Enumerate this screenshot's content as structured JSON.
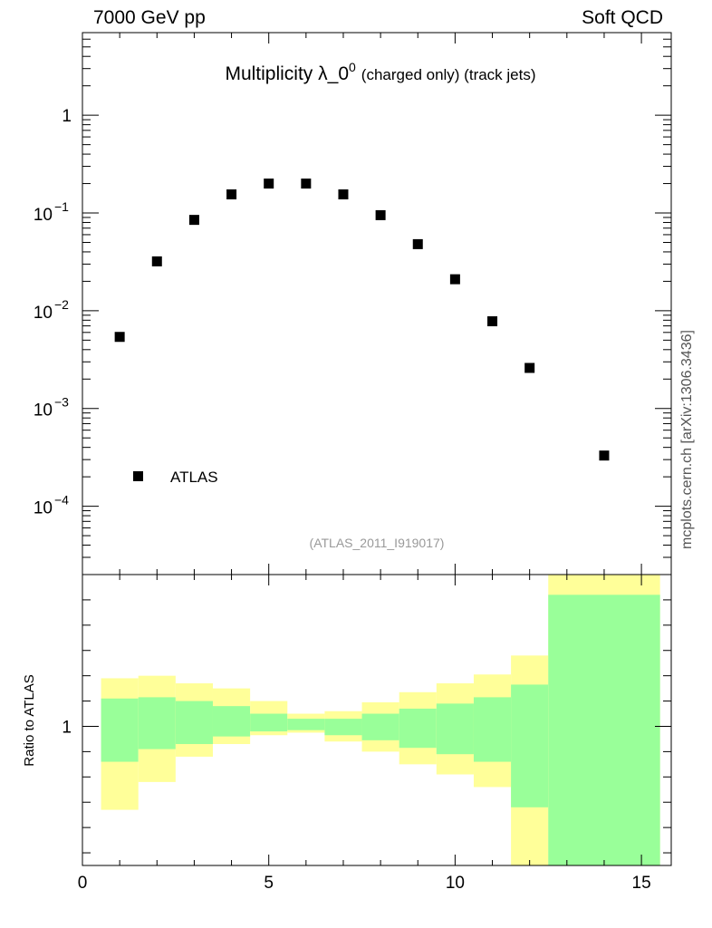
{
  "header": {
    "left": "7000 GeV pp",
    "right": "Soft QCD"
  },
  "side_label": "mcplots.cern.ch [arXiv:1306.3436]",
  "reference": "(ATLAS_2011_I919017)",
  "ratio_ylabel": "Ratio to ATLAS",
  "colors": {
    "band_inner": "#99ff99",
    "band_outer": "#ffff99",
    "marker": "#000000"
  },
  "chart_data": [
    {
      "type": "scatter",
      "title": {
        "main": "Multiplicity λ_0",
        "sup": "0",
        "sub": "(charged only) (track jets)"
      },
      "y_scale": "log",
      "xlim": [
        0,
        15.8
      ],
      "ylim": [
        2e-05,
        7
      ],
      "yticks": [
        {
          "value": 1,
          "label": "1"
        },
        {
          "value": 0.1,
          "base": "10",
          "exp": "−1"
        },
        {
          "value": 0.01,
          "base": "10",
          "exp": "−2"
        },
        {
          "value": 0.001,
          "base": "10",
          "exp": "−3"
        },
        {
          "value": 0.0001,
          "base": "10",
          "exp": "−4"
        }
      ],
      "legend": {
        "position": "bottom-left",
        "entries": [
          "ATLAS"
        ]
      },
      "series": [
        {
          "name": "ATLAS",
          "x": [
            1,
            2,
            3,
            4,
            5,
            6,
            7,
            8,
            9,
            10,
            11,
            12,
            14
          ],
          "y": [
            0.0054,
            0.032,
            0.085,
            0.155,
            0.2,
            0.2,
            0.155,
            0.095,
            0.048,
            0.021,
            0.0078,
            0.0026,
            0.00033
          ]
        }
      ]
    },
    {
      "type": "area",
      "ylabel": "Ratio to ATLAS",
      "xlim": [
        0,
        15.8
      ],
      "ylim": [
        0.45,
        1.6
      ],
      "xticks": [
        0,
        5,
        10,
        15
      ],
      "yticks": [
        {
          "value": 1,
          "label": "1"
        }
      ],
      "bins": [
        {
          "lo": 0.5,
          "hi": 1.5,
          "inner": [
            0.86,
            1.11
          ],
          "outer": [
            0.67,
            1.19
          ]
        },
        {
          "lo": 1.5,
          "hi": 2.5,
          "inner": [
            0.91,
            1.115
          ],
          "outer": [
            0.78,
            1.2
          ]
        },
        {
          "lo": 2.5,
          "hi": 3.5,
          "inner": [
            0.93,
            1.1
          ],
          "outer": [
            0.88,
            1.17
          ]
        },
        {
          "lo": 3.5,
          "hi": 4.5,
          "inner": [
            0.96,
            1.08
          ],
          "outer": [
            0.93,
            1.15
          ]
        },
        {
          "lo": 4.5,
          "hi": 5.5,
          "inner": [
            0.98,
            1.05
          ],
          "outer": [
            0.965,
            1.1
          ]
        },
        {
          "lo": 5.5,
          "hi": 6.5,
          "inner": [
            0.985,
            1.03
          ],
          "outer": [
            0.975,
            1.05
          ]
        },
        {
          "lo": 6.5,
          "hi": 7.5,
          "inner": [
            0.965,
            1.03
          ],
          "outer": [
            0.94,
            1.06
          ]
        },
        {
          "lo": 7.5,
          "hi": 8.5,
          "inner": [
            0.945,
            1.05
          ],
          "outer": [
            0.9,
            1.095
          ]
        },
        {
          "lo": 8.5,
          "hi": 9.5,
          "inner": [
            0.915,
            1.07
          ],
          "outer": [
            0.85,
            1.135
          ]
        },
        {
          "lo": 9.5,
          "hi": 10.5,
          "inner": [
            0.89,
            1.09
          ],
          "outer": [
            0.81,
            1.17
          ]
        },
        {
          "lo": 10.5,
          "hi": 11.5,
          "inner": [
            0.86,
            1.115
          ],
          "outer": [
            0.76,
            1.205
          ]
        },
        {
          "lo": 11.5,
          "hi": 12.5,
          "inner": [
            0.68,
            1.165
          ],
          "outer": [
            0.45,
            1.28
          ]
        },
        {
          "lo": 12.5,
          "hi": 15.5,
          "inner": [
            0.45,
            1.52
          ],
          "outer": [
            0.45,
            1.6
          ]
        }
      ]
    }
  ]
}
